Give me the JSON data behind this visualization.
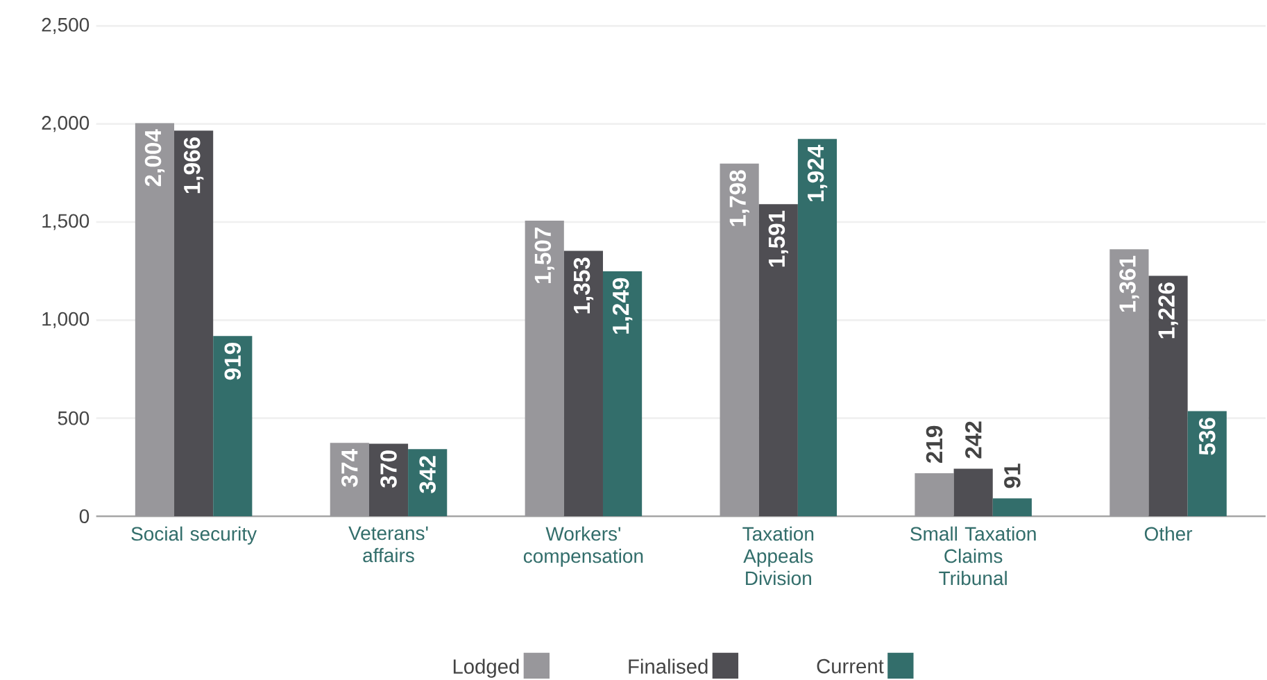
{
  "chart_data": {
    "type": "bar",
    "categories": [
      "Social security",
      "Veterans' affairs",
      "Workers' compensation",
      "Taxation Appeals Division",
      "Small Taxation Claims Tribunal",
      "Other"
    ],
    "series": [
      {
        "name": "Lodged",
        "color": "#98979b",
        "values": [
          2004,
          374,
          1507,
          1798,
          219,
          1361
        ],
        "value_labels": [
          "2,004",
          "374",
          "1,507",
          "1,798",
          "219",
          "1,361"
        ]
      },
      {
        "name": "Finalised",
        "color": "#4f4e53",
        "values": [
          1966,
          370,
          1353,
          1591,
          242,
          1226
        ],
        "value_labels": [
          "1,966",
          "370",
          "1,353",
          "1,591",
          "242",
          "1,226"
        ]
      },
      {
        "name": "Current",
        "color": "#336e6b",
        "values": [
          919,
          342,
          1249,
          1924,
          91,
          536
        ],
        "value_labels": [
          "919",
          "342",
          "1,249",
          "1,924",
          "91",
          "536"
        ]
      }
    ],
    "ylim": [
      0,
      2500
    ],
    "yticks": [
      {
        "value": 0,
        "label": "0"
      },
      {
        "value": 500,
        "label": "500"
      },
      {
        "value": 1000,
        "label": "1,000"
      },
      {
        "value": 1500,
        "label": "1,500"
      },
      {
        "value": 2000,
        "label": "2,000"
      },
      {
        "value": 2500,
        "label": "2,500"
      }
    ],
    "grid": "y",
    "legend": "bottom"
  }
}
